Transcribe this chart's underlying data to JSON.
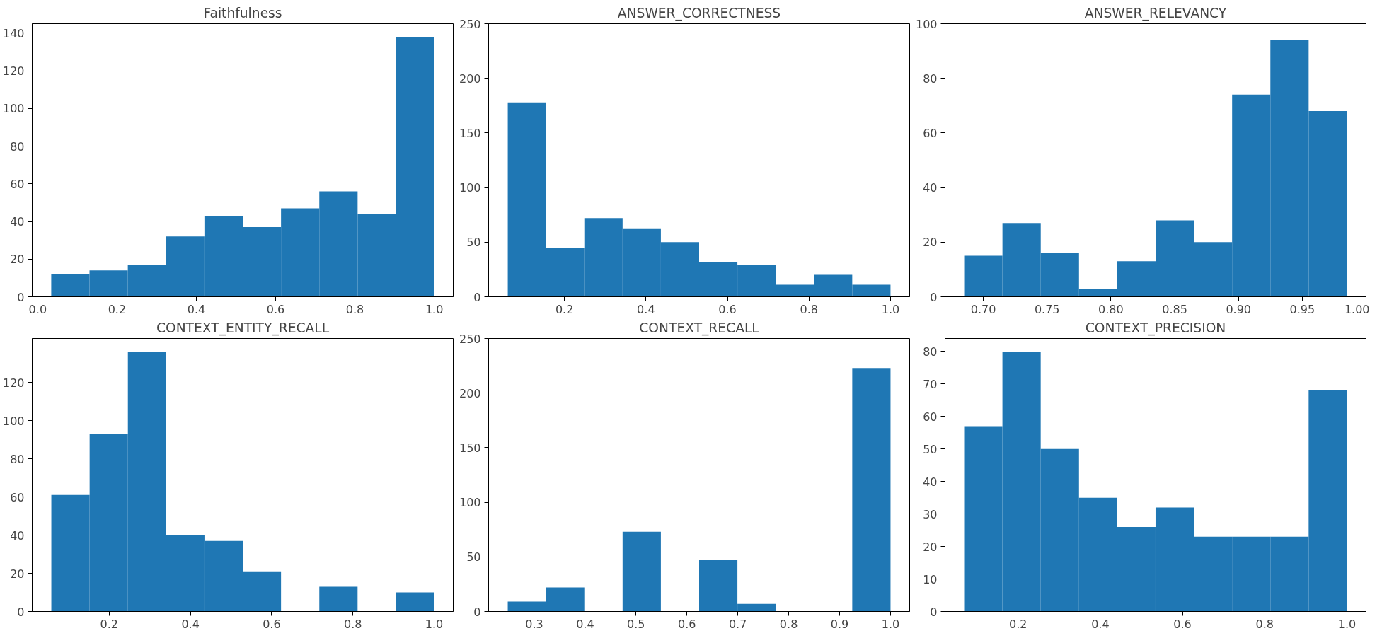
{
  "chart_data": [
    {
      "type": "histogram",
      "title": "Faithfulness",
      "color": "#1f77b4",
      "bins": [
        0.034,
        0.1306,
        0.2272,
        0.3238,
        0.4204,
        0.517,
        0.6136,
        0.7102,
        0.8068,
        0.9034,
        1.0
      ],
      "values": [
        12,
        14,
        17,
        32,
        43,
        37,
        47,
        56,
        44,
        138
      ],
      "xlim": [
        -0.014,
        1.048
      ],
      "ylim": [
        0,
        145
      ],
      "xticks": [
        {
          "value": 0,
          "label": "0.0"
        },
        0.2,
        0.4,
        0.6,
        0.8,
        {
          "value": 1,
          "label": "1.0"
        }
      ],
      "yticks": [
        0,
        20,
        40,
        60,
        80,
        100,
        120,
        140
      ]
    },
    {
      "type": "histogram",
      "title": "ANSWER_CORRECTNESS",
      "color": "#1f77b4",
      "bins": [
        0.061,
        0.1549,
        0.2488,
        0.3427,
        0.4366,
        0.5305,
        0.6244,
        0.7183,
        0.8122,
        0.9061,
        1.0
      ],
      "values": [
        178,
        45,
        72,
        62,
        50,
        32,
        29,
        11,
        20,
        11
      ],
      "xlim": [
        0.014,
        1.047
      ],
      "ylim": [
        0,
        250
      ],
      "xticks": [
        0.2,
        0.4,
        0.6,
        0.8,
        {
          "value": 1,
          "label": "1.0"
        }
      ],
      "yticks": [
        0,
        50,
        100,
        150,
        200,
        250
      ]
    },
    {
      "type": "histogram",
      "title": "ANSWER_RELEVANCY",
      "color": "#1f77b4",
      "bins": [
        0.685,
        0.715,
        0.745,
        0.775,
        0.805,
        0.835,
        0.865,
        0.895,
        0.925,
        0.955,
        0.985
      ],
      "values": [
        15,
        27,
        16,
        3,
        13,
        28,
        20,
        74,
        94,
        68
      ],
      "xlim": [
        0.67,
        1.0
      ],
      "ylim": [
        0,
        100
      ],
      "xticks": [
        {
          "value": 0.7,
          "label": "0.70"
        },
        0.75,
        {
          "value": 0.8,
          "label": "0.80"
        },
        0.85,
        {
          "value": 0.9,
          "label": "0.90"
        },
        0.95,
        {
          "value": 1,
          "label": "1.00"
        }
      ],
      "yticks": [
        0,
        20,
        40,
        60,
        80,
        100
      ]
    },
    {
      "type": "histogram",
      "title": "CONTEXT_ENTITY_RECALL",
      "color": "#1f77b4",
      "bins": [
        0.0575,
        0.1518,
        0.246,
        0.3403,
        0.4345,
        0.5288,
        0.623,
        0.7173,
        0.8115,
        0.9058,
        1.0
      ],
      "values": [
        61,
        93,
        136,
        40,
        37,
        21,
        0,
        13,
        0,
        10
      ],
      "xlim": [
        0.0104,
        1.047
      ],
      "ylim": [
        0,
        143
      ],
      "xticks": [
        0.2,
        0.4,
        0.6,
        0.8,
        {
          "value": 1,
          "label": "1.0"
        }
      ],
      "yticks": [
        0,
        20,
        40,
        60,
        80,
        100,
        120
      ]
    },
    {
      "type": "histogram",
      "title": "CONTEXT_RECALL",
      "color": "#1f77b4",
      "bins": [
        0.248,
        0.3232,
        0.3984,
        0.4736,
        0.5488,
        0.624,
        0.6992,
        0.7744,
        0.8496,
        0.9248,
        1.0
      ],
      "values": [
        9,
        22,
        0,
        73,
        0,
        47,
        7,
        0,
        0,
        223
      ],
      "xlim": [
        0.2104,
        1.0376
      ],
      "ylim": [
        0,
        250
      ],
      "xticks": [
        0.3,
        0.4,
        0.5,
        0.6,
        0.7,
        0.8,
        0.9,
        {
          "value": 1,
          "label": "1.0"
        }
      ],
      "yticks": [
        0,
        50,
        100,
        150,
        200,
        250
      ]
    },
    {
      "type": "histogram",
      "title": "CONTEXT_PRECISION",
      "color": "#1f77b4",
      "bins": [
        0.0688,
        0.1619,
        0.255,
        0.3482,
        0.4413,
        0.5344,
        0.6275,
        0.7206,
        0.8138,
        0.9069,
        1.0
      ],
      "values": [
        57,
        80,
        50,
        35,
        26,
        32,
        23,
        23,
        23,
        68
      ],
      "xlim": [
        0.0223,
        1.0466
      ],
      "ylim": [
        0,
        84
      ],
      "xticks": [
        0.2,
        0.4,
        0.6,
        0.8,
        {
          "value": 1,
          "label": "1.0"
        }
      ],
      "yticks": [
        0,
        10,
        20,
        30,
        40,
        50,
        60,
        70,
        80
      ]
    }
  ]
}
